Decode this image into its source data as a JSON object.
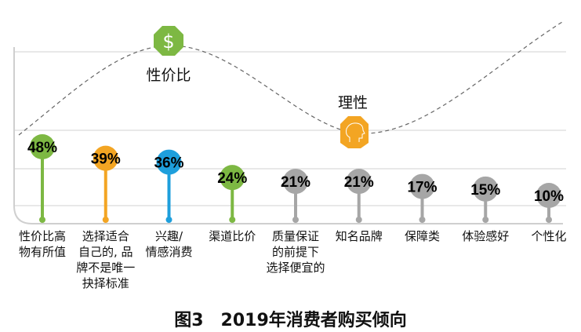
{
  "chart_data": {
    "type": "lollipop",
    "title": "图3　2019年消费者购买倾向",
    "categories": [
      "性价比高物有所值",
      "选择适合自己的, 品牌不是唯一抉择标准",
      "兴趣/情感消费",
      "渠道比价",
      "质量保证的前提下选择便宜的",
      "知名品牌",
      "保障类",
      "体验感好",
      "个性化"
    ],
    "category_lines": [
      "性价比高\n物有所值",
      "选择适合\n自己的, 品\n牌不是唯一\n抉择标准",
      "兴趣/\n情感消费",
      "渠道比价",
      "质量保证\n的前提下\n选择便宜的",
      "知名品牌",
      "保障类",
      "体验感好",
      "个性化"
    ],
    "values": [
      48,
      39,
      36,
      24,
      21,
      21,
      17,
      15,
      10
    ],
    "labels": [
      "48%",
      "39%",
      "36%",
      "24%",
      "21%",
      "21%",
      "17%",
      "15%",
      "10%"
    ],
    "colors": [
      "#7db843",
      "#f3a523",
      "#1e9fdc",
      "#7db843",
      "#a6a6a6",
      "#a6a6a6",
      "#a6a6a6",
      "#a6a6a6",
      "#a6a6a6"
    ],
    "unit": "%",
    "grid": true,
    "annotations": [
      {
        "text": "性价比",
        "icon": "dollar-icon",
        "color": "#7db843"
      },
      {
        "text": "理性",
        "icon": "head-icon",
        "color": "#f3a523"
      }
    ]
  }
}
